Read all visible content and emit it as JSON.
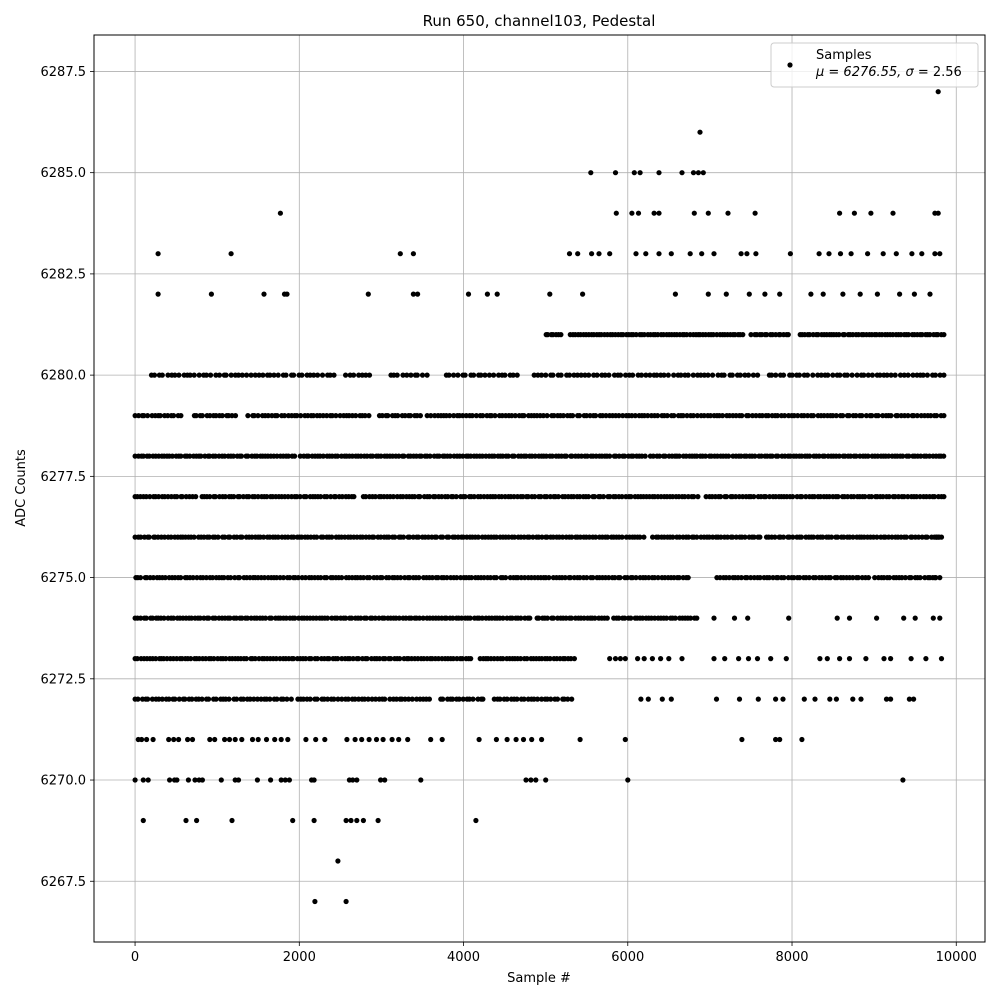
{
  "chart_data": {
    "type": "scatter",
    "title": "Run 650, channel103, Pedestal",
    "xlabel": "Sample #",
    "ylabel": "ADC Counts",
    "xlim": [
      -500,
      10350
    ],
    "ylim": [
      6266.0,
      6288.4
    ],
    "xticks": [
      0,
      2000,
      4000,
      6000,
      8000,
      10000
    ],
    "xtick_labels": [
      "0",
      "2000",
      "4000",
      "6000",
      "8000",
      "10000"
    ],
    "yticks": [
      6267.5,
      6270.0,
      6272.5,
      6275.0,
      6277.5,
      6280.0,
      6282.5,
      6285.0,
      6287.5
    ],
    "ytick_labels": [
      "6267.5",
      "6270.0",
      "6272.5",
      "6275.0",
      "6277.5",
      "6280.0",
      "6282.5",
      "6285.0",
      "6287.5"
    ],
    "grid": true,
    "legend": {
      "position": "top-right",
      "label": "Samples",
      "stats_prefix": "μ = 6276.55, ",
      "stats_sigma": "σ",
      "stats_suffix": " = 2.56"
    },
    "marker_color": "#000000",
    "series": [
      {
        "name": "Samples",
        "points": [
          [
            2190,
            6267
          ],
          [
            2570,
            6267
          ],
          [
            2470,
            6268
          ],
          [
            100,
            6269
          ],
          [
            620,
            6269
          ],
          [
            750,
            6269
          ],
          [
            1180,
            6269
          ],
          [
            1920,
            6269
          ],
          [
            2180,
            6269
          ],
          [
            2570,
            6269
          ],
          [
            2630,
            6269
          ],
          [
            2700,
            6269
          ],
          [
            2780,
            6269
          ],
          [
            2960,
            6269
          ],
          [
            4150,
            6269
          ],
          [
            0,
            6270
          ],
          [
            100,
            6270
          ],
          [
            160,
            6270
          ],
          [
            420,
            6270
          ],
          [
            480,
            6270
          ],
          [
            510,
            6270
          ],
          [
            650,
            6270
          ],
          [
            730,
            6270
          ],
          [
            780,
            6270
          ],
          [
            820,
            6270
          ],
          [
            1050,
            6270
          ],
          [
            1220,
            6270
          ],
          [
            1260,
            6270
          ],
          [
            1490,
            6270
          ],
          [
            1650,
            6270
          ],
          [
            1780,
            6270
          ],
          [
            1830,
            6270
          ],
          [
            1880,
            6270
          ],
          [
            2150,
            6270
          ],
          [
            2180,
            6270
          ],
          [
            2610,
            6270
          ],
          [
            2650,
            6270
          ],
          [
            2700,
            6270
          ],
          [
            2990,
            6270
          ],
          [
            3040,
            6270
          ],
          [
            3480,
            6270
          ],
          [
            4760,
            6270
          ],
          [
            4820,
            6270
          ],
          [
            4880,
            6270
          ],
          [
            5000,
            6270
          ],
          [
            6000,
            6270
          ],
          [
            9350,
            6270
          ],
          [
            40,
            6271
          ],
          [
            80,
            6271
          ],
          [
            140,
            6271
          ],
          [
            220,
            6271
          ],
          [
            410,
            6271
          ],
          [
            470,
            6271
          ],
          [
            530,
            6271
          ],
          [
            640,
            6271
          ],
          [
            700,
            6271
          ],
          [
            910,
            6271
          ],
          [
            970,
            6271
          ],
          [
            1090,
            6271
          ],
          [
            1150,
            6271
          ],
          [
            1220,
            6271
          ],
          [
            1300,
            6271
          ],
          [
            1430,
            6271
          ],
          [
            1500,
            6271
          ],
          [
            1600,
            6271
          ],
          [
            1700,
            6271
          ],
          [
            1780,
            6271
          ],
          [
            1860,
            6271
          ],
          [
            2080,
            6271
          ],
          [
            2200,
            6271
          ],
          [
            2310,
            6271
          ],
          [
            2580,
            6271
          ],
          [
            2680,
            6271
          ],
          [
            2760,
            6271
          ],
          [
            2850,
            6271
          ],
          [
            2940,
            6271
          ],
          [
            3020,
            6271
          ],
          [
            3130,
            6271
          ],
          [
            3210,
            6271
          ],
          [
            3320,
            6271
          ],
          [
            3600,
            6271
          ],
          [
            3740,
            6271
          ],
          [
            4190,
            6271
          ],
          [
            4400,
            6271
          ],
          [
            4530,
            6271
          ],
          [
            4640,
            6271
          ],
          [
            4730,
            6271
          ],
          [
            4830,
            6271
          ],
          [
            4950,
            6271
          ],
          [
            5420,
            6271
          ],
          [
            5970,
            6271
          ],
          [
            7390,
            6271
          ],
          [
            7800,
            6271
          ],
          [
            7850,
            6271
          ],
          [
            8120,
            6271
          ],
          [
            7080,
            6272
          ],
          [
            7360,
            6272
          ],
          [
            7590,
            6272
          ],
          [
            7800,
            6272
          ],
          [
            7890,
            6272
          ],
          [
            8150,
            6272
          ],
          [
            8280,
            6272
          ],
          [
            8460,
            6272
          ],
          [
            8540,
            6272
          ],
          [
            8740,
            6272
          ],
          [
            8840,
            6272
          ],
          [
            9150,
            6272
          ],
          [
            9200,
            6272
          ],
          [
            9430,
            6272
          ],
          [
            9480,
            6272
          ],
          [
            6160,
            6272
          ],
          [
            6250,
            6272
          ],
          [
            6420,
            6272
          ],
          [
            6530,
            6272
          ],
          [
            5780,
            6273
          ],
          [
            5850,
            6273
          ],
          [
            5910,
            6273
          ],
          [
            5970,
            6273
          ],
          [
            6120,
            6273
          ],
          [
            6200,
            6273
          ],
          [
            6300,
            6273
          ],
          [
            6400,
            6273
          ],
          [
            6500,
            6273
          ],
          [
            6660,
            6273
          ],
          [
            7050,
            6273
          ],
          [
            7180,
            6273
          ],
          [
            7350,
            6273
          ],
          [
            7470,
            6273
          ],
          [
            7580,
            6273
          ],
          [
            7740,
            6273
          ],
          [
            7930,
            6273
          ],
          [
            8340,
            6273
          ],
          [
            8430,
            6273
          ],
          [
            8580,
            6273
          ],
          [
            8700,
            6273
          ],
          [
            8900,
            6273
          ],
          [
            9120,
            6273
          ],
          [
            9200,
            6273
          ],
          [
            9450,
            6273
          ],
          [
            9630,
            6273
          ],
          [
            9820,
            6273
          ],
          [
            7050,
            6274
          ],
          [
            7300,
            6274
          ],
          [
            7460,
            6274
          ],
          [
            7960,
            6274
          ],
          [
            8550,
            6274
          ],
          [
            8700,
            6274
          ],
          [
            9030,
            6274
          ],
          [
            9360,
            6274
          ],
          [
            9500,
            6274
          ],
          [
            9720,
            6274
          ],
          [
            9800,
            6274
          ],
          [
            9760,
            6276
          ],
          [
            9780,
            6276
          ],
          [
            9820,
            6276
          ],
          [
            9740,
            6275
          ],
          [
            9800,
            6275
          ],
          [
            9740,
            6283
          ],
          [
            9800,
            6283
          ],
          [
            9740,
            6284
          ],
          [
            9780,
            6284
          ],
          [
            9780,
            6287
          ],
          [
            280,
            6283
          ],
          [
            1170,
            6283
          ],
          [
            3230,
            6283
          ],
          [
            3390,
            6283
          ],
          [
            5290,
            6283
          ],
          [
            5390,
            6283
          ],
          [
            5560,
            6283
          ],
          [
            5650,
            6283
          ],
          [
            5780,
            6283
          ],
          [
            6100,
            6283
          ],
          [
            6220,
            6283
          ],
          [
            6380,
            6283
          ],
          [
            6530,
            6283
          ],
          [
            6760,
            6283
          ],
          [
            6900,
            6283
          ],
          [
            7050,
            6283
          ],
          [
            7380,
            6283
          ],
          [
            7450,
            6283
          ],
          [
            7560,
            6283
          ],
          [
            7980,
            6283
          ],
          [
            8330,
            6283
          ],
          [
            8450,
            6283
          ],
          [
            8590,
            6283
          ],
          [
            8720,
            6283
          ],
          [
            8920,
            6283
          ],
          [
            9110,
            6283
          ],
          [
            9270,
            6283
          ],
          [
            9460,
            6283
          ],
          [
            9580,
            6283
          ],
          [
            280,
            6282
          ],
          [
            930,
            6282
          ],
          [
            1570,
            6282
          ],
          [
            1820,
            6282
          ],
          [
            1850,
            6282
          ],
          [
            2840,
            6282
          ],
          [
            3390,
            6282
          ],
          [
            3440,
            6282
          ],
          [
            4060,
            6282
          ],
          [
            4290,
            6282
          ],
          [
            4410,
            6282
          ],
          [
            5050,
            6282
          ],
          [
            5450,
            6282
          ],
          [
            6580,
            6282
          ],
          [
            6980,
            6282
          ],
          [
            7200,
            6282
          ],
          [
            7480,
            6282
          ],
          [
            7670,
            6282
          ],
          [
            7850,
            6282
          ],
          [
            8230,
            6282
          ],
          [
            8380,
            6282
          ],
          [
            8620,
            6282
          ],
          [
            8830,
            6282
          ],
          [
            9040,
            6282
          ],
          [
            9310,
            6282
          ],
          [
            9490,
            6282
          ],
          [
            9680,
            6282
          ],
          [
            1770,
            6284
          ],
          [
            5860,
            6284
          ],
          [
            6050,
            6284
          ],
          [
            6130,
            6284
          ],
          [
            6320,
            6284
          ],
          [
            6380,
            6284
          ],
          [
            6810,
            6284
          ],
          [
            6980,
            6284
          ],
          [
            7220,
            6284
          ],
          [
            7550,
            6284
          ],
          [
            8580,
            6284
          ],
          [
            8760,
            6284
          ],
          [
            8960,
            6284
          ],
          [
            9230,
            6284
          ],
          [
            5550,
            6285
          ],
          [
            5850,
            6285
          ],
          [
            6080,
            6285
          ],
          [
            6150,
            6285
          ],
          [
            6380,
            6285
          ],
          [
            6660,
            6285
          ],
          [
            6800,
            6285
          ],
          [
            6860,
            6285
          ],
          [
            6920,
            6285
          ],
          [
            6880,
            6286
          ]
        ],
        "rows": [
          {
            "y": 6272,
            "x_start": 0,
            "x_end": 5320,
            "count": 130,
            "gaps": [
              [
                1920,
                1960
              ],
              [
                3620,
                3680
              ],
              [
                4260,
                4360
              ]
            ]
          },
          {
            "y": 6273,
            "x_start": 0,
            "x_end": 5350,
            "count": 150,
            "gaps": [
              [
                4120,
                4180
              ]
            ]
          },
          {
            "y": 6274,
            "x_start": 0,
            "x_end": 6840,
            "count": 190,
            "gaps": [
              [
                4820,
                4860
              ],
              [
                5780,
                5820
              ]
            ]
          },
          {
            "y": 6275,
            "x_start": 0,
            "x_end": 9760,
            "count": 260,
            "gaps": [
              [
                6740,
                7050
              ],
              [
                8960,
                9000
              ]
            ]
          },
          {
            "y": 6276,
            "x_start": 0,
            "x_end": 9800,
            "count": 270,
            "gaps": [
              [
                6230,
                6290
              ],
              [
                7620,
                7680
              ]
            ]
          },
          {
            "y": 6277,
            "x_start": 0,
            "x_end": 9850,
            "count": 270,
            "gaps": [
              [
                740,
                800
              ],
              [
                2700,
                2760
              ],
              [
                6870,
                6940
              ]
            ]
          },
          {
            "y": 6278,
            "x_start": 0,
            "x_end": 9850,
            "count": 280,
            "gaps": [
              [
                1950,
                2010
              ],
              [
                6230,
                6270
              ]
            ]
          },
          {
            "y": 6279,
            "x_start": 0,
            "x_end": 9850,
            "count": 250,
            "gaps": [
              [
                580,
                700
              ],
              [
                1260,
                1350
              ],
              [
                2860,
                2950
              ],
              [
                3500,
                3540
              ]
            ]
          },
          {
            "y": 6280,
            "x_start": 200,
            "x_end": 9850,
            "count": 200,
            "gaps": [
              [
                2440,
                2560
              ],
              [
                2900,
                3100
              ],
              [
                3600,
                3760
              ],
              [
                4700,
                4860
              ],
              [
                7620,
                7720
              ]
            ]
          },
          {
            "y": 6281,
            "x_start": 5000,
            "x_end": 9850,
            "count": 150,
            "gaps": [
              [
                5220,
                5280
              ],
              [
                7440,
                7500
              ],
              [
                7980,
                8100
              ]
            ]
          }
        ]
      }
    ]
  }
}
